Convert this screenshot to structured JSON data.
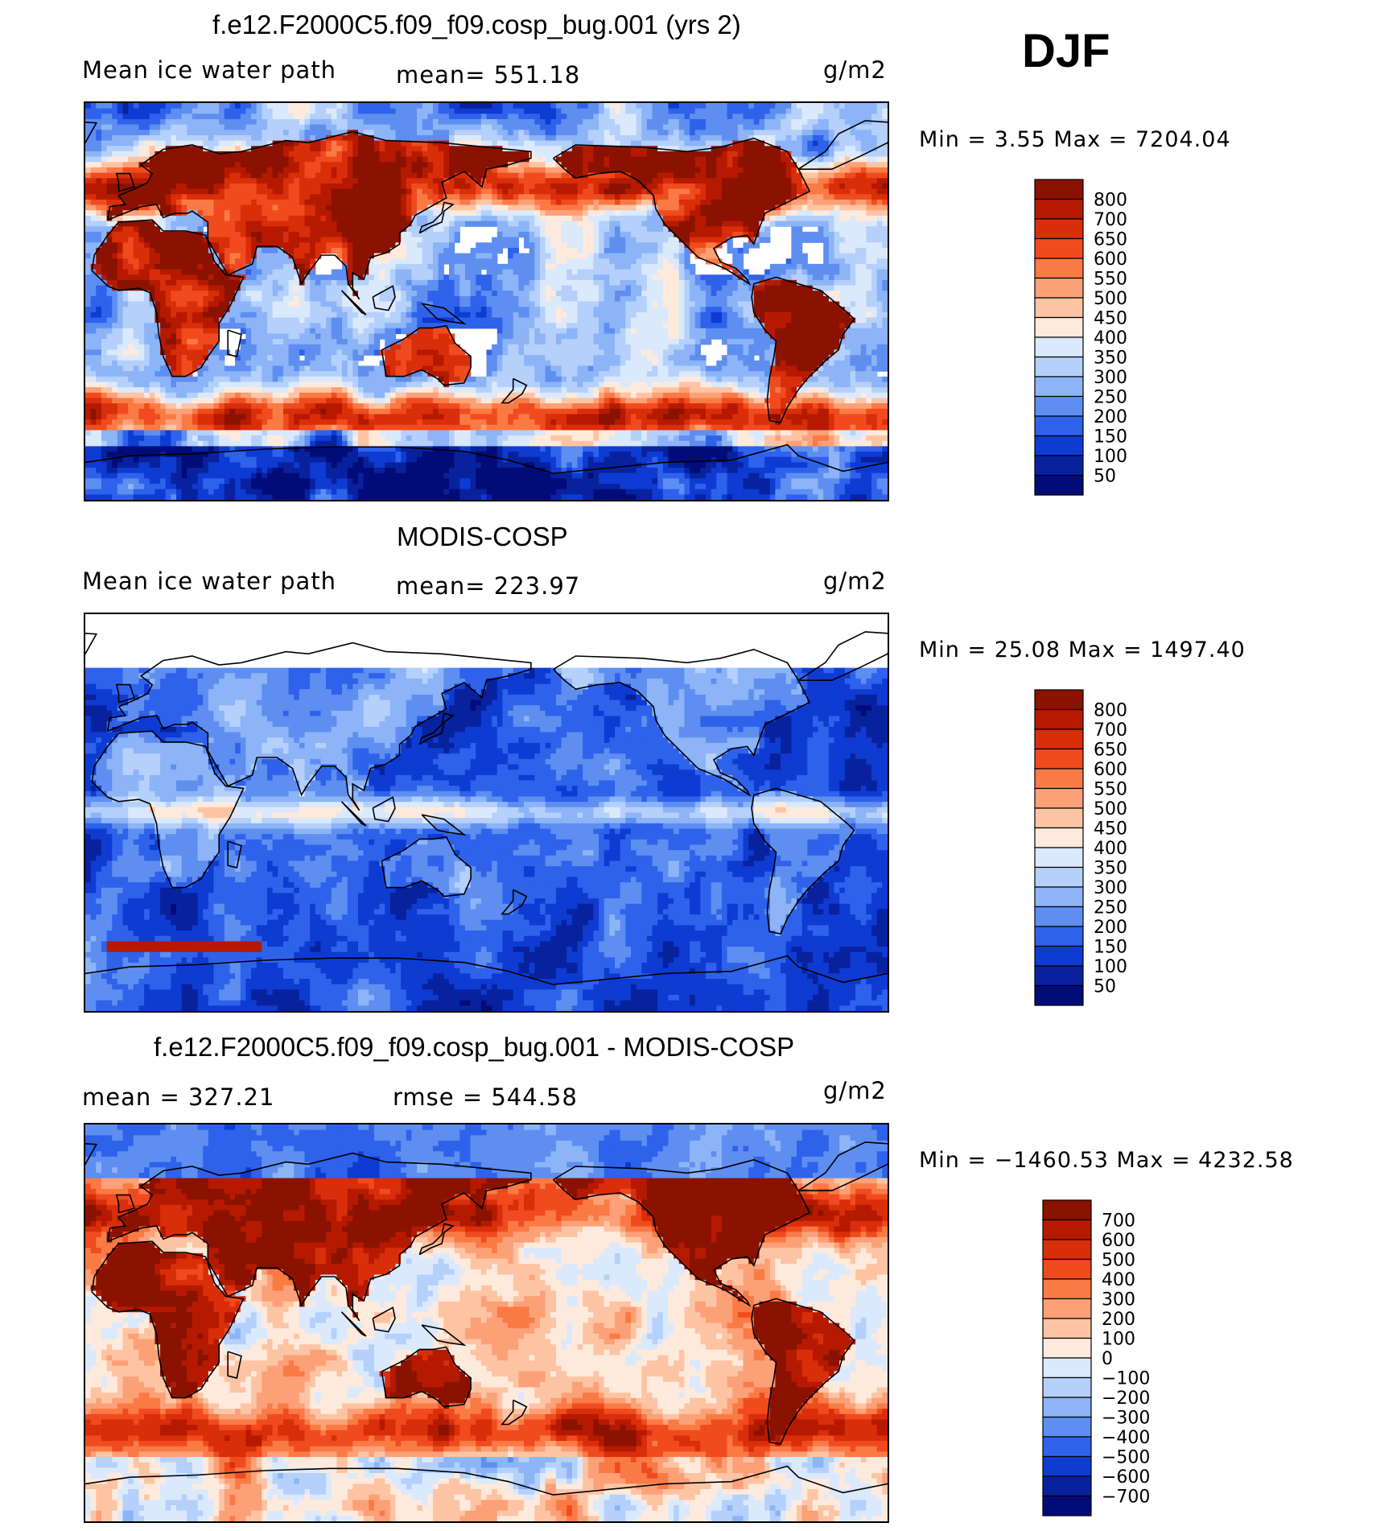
{
  "season": "DJF",
  "panels": [
    {
      "id": "model",
      "title": "f.e12.F2000C5.f09_f09.cosp_bug.001 (yrs 2)",
      "left_label": "Mean ice water path",
      "center_label": "mean= 551.18",
      "units": "g/m2",
      "min_max": "Min =    3.55 Max = 7204.04",
      "colorbar": {
        "levels": [
          "800",
          "700",
          "650",
          "600",
          "550",
          "500",
          "450",
          "400",
          "350",
          "300",
          "250",
          "200",
          "150",
          "100",
          "50"
        ],
        "colors": [
          "#8b1200",
          "#b51a00",
          "#d92e0a",
          "#f04b1e",
          "#fa7a45",
          "#fca078",
          "#fdc4a4",
          "#feeadc",
          "#dbe9fc",
          "#b4d0fb",
          "#8cb4f7",
          "#5e8ef0",
          "#2f62ea",
          "#0e3bd2",
          "#08229e",
          "#020c78"
        ]
      },
      "field_palette": "model"
    },
    {
      "id": "obs",
      "title": "MODIS-COSP",
      "left_label": "Mean ice water path",
      "center_label": "mean= 223.97",
      "units": "g/m2",
      "min_max": "Min =   25.08 Max = 1497.40",
      "colorbar": {
        "levels": [
          "800",
          "700",
          "650",
          "600",
          "550",
          "500",
          "450",
          "400",
          "350",
          "300",
          "250",
          "200",
          "150",
          "100",
          "50"
        ],
        "colors": [
          "#8b1200",
          "#b51a00",
          "#d92e0a",
          "#f04b1e",
          "#fa7a45",
          "#fca078",
          "#fdc4a4",
          "#feeadc",
          "#dbe9fc",
          "#b4d0fb",
          "#8cb4f7",
          "#5e8ef0",
          "#2f62ea",
          "#0e3bd2",
          "#08229e",
          "#020c78"
        ]
      },
      "field_palette": "obs"
    },
    {
      "id": "diff",
      "title": "f.e12.F2000C5.f09_f09.cosp_bug.001 - MODIS-COSP",
      "left_label": "mean = 327.21",
      "center_label": "rmse = 544.58",
      "units": "g/m2",
      "min_max": "Min = −1460.53 Max = 4232.58",
      "colorbar": {
        "levels": [
          "700",
          "600",
          "500",
          "400",
          "300",
          "200",
          "100",
          "0",
          "−100",
          "−200",
          "−300",
          "−400",
          "−500",
          "−600",
          "−700"
        ],
        "colors": [
          "#8b1200",
          "#b51a00",
          "#d92e0a",
          "#f04b1e",
          "#fa7a45",
          "#fca078",
          "#fdc4a4",
          "#feeadc",
          "#dbe9fc",
          "#b4d0fb",
          "#8cb4f7",
          "#5e8ef0",
          "#2f62ea",
          "#0e3bd2",
          "#08229e",
          "#020c78"
        ]
      },
      "field_palette": "diff"
    }
  ]
}
